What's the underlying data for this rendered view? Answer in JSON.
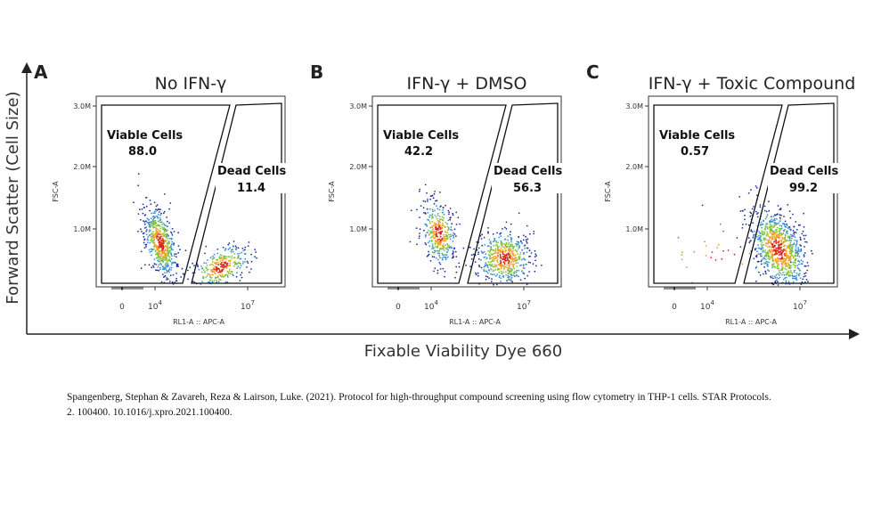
{
  "figure": {
    "y_axis_label": "Forward Scatter (Cell Size)",
    "x_axis_label": "Fixable Viability Dye 660",
    "panels": [
      {
        "letter": "A",
        "title": "No IFN-γ",
        "y_ticks": [
          "3.0M",
          "2.0M",
          "1.0M"
        ],
        "y_axis_label": "FSC-A",
        "x_ticks": [
          {
            "base": "0",
            "exp": ""
          },
          {
            "base": "10",
            "exp": "4"
          },
          {
            "base": "10",
            "exp": "7"
          }
        ],
        "x_axis_label": "RL1-A :: APC-A",
        "gates": [
          {
            "label": "Viable Cells",
            "value": "88.0"
          },
          {
            "label": "Dead Cells",
            "value": "11.4"
          }
        ]
      },
      {
        "letter": "B",
        "title": "IFN-γ + DMSO",
        "y_ticks": [
          "3.0M",
          "2.0M",
          "1.0M"
        ],
        "y_axis_label": "FSC-A",
        "x_ticks": [
          {
            "base": "0",
            "exp": ""
          },
          {
            "base": "10",
            "exp": "4"
          },
          {
            "base": "10",
            "exp": "7"
          }
        ],
        "x_axis_label": "RL1-A :: APC-A",
        "gates": [
          {
            "label": "Viable Cells",
            "value": "42.2"
          },
          {
            "label": "Dead Cells",
            "value": "56.3"
          }
        ]
      },
      {
        "letter": "C",
        "title": "IFN-γ + Toxic Compound",
        "y_ticks": [
          "3.0M",
          "2.0M",
          "1.0M"
        ],
        "y_axis_label": "FSC-A",
        "x_ticks": [
          {
            "base": "0",
            "exp": ""
          },
          {
            "base": "10",
            "exp": "4"
          },
          {
            "base": "10",
            "exp": "7"
          }
        ],
        "x_axis_label": "RL1-A :: APC-A",
        "gates": [
          {
            "label": "Viable Cells",
            "value": "0.57"
          },
          {
            "label": "Dead Cells",
            "value": "99.2"
          }
        ]
      }
    ]
  },
  "caption": {
    "line1": "Spangenberg, Stephan & Zavareh, Reza & Lairson, Luke. (2021). Protocol for high-throughput compound screening using flow cytometry in THP-1 cells. STAR Protocols.",
    "line2": "2. 100400. 10.1016/j.xpro.2021.100400."
  }
}
